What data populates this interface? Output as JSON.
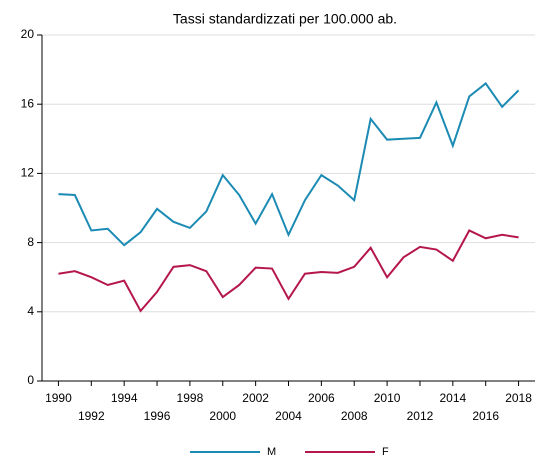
{
  "chart_data": {
    "type": "line",
    "title": "Tassi standardizzati per 100.000 ab.",
    "x": [
      1990,
      1991,
      1992,
      1993,
      1994,
      1995,
      1996,
      1997,
      1998,
      1999,
      2000,
      2001,
      2002,
      2003,
      2004,
      2005,
      2006,
      2007,
      2008,
      2009,
      2010,
      2011,
      2012,
      2013,
      2014,
      2015,
      2016,
      2017,
      2018
    ],
    "series": [
      {
        "name": "M",
        "color": "#1b8bb4",
        "values": [
          10.8,
          10.75,
          8.7,
          8.8,
          7.85,
          8.6,
          9.95,
          9.2,
          8.85,
          9.8,
          11.9,
          10.75,
          9.1,
          10.8,
          8.45,
          10.45,
          11.9,
          11.3,
          10.45,
          15.15,
          13.95,
          14,
          14.05,
          16.1,
          13.6,
          16.45,
          17.2,
          15.85,
          16.8
        ]
      },
      {
        "name": "F",
        "color": "#b5174b",
        "values": [
          6.2,
          6.35,
          6.0,
          5.55,
          5.8,
          4.05,
          5.15,
          6.6,
          6.7,
          6.35,
          4.85,
          5.55,
          6.55,
          6.5,
          4.75,
          6.2,
          6.3,
          6.25,
          6.6,
          7.7,
          6.0,
          7.15,
          7.75,
          7.6,
          6.95,
          8.7,
          8.25,
          8.45,
          8.3
        ]
      }
    ],
    "xlim": [
      1989,
      2019
    ],
    "xticks": [
      1990,
      1992,
      1994,
      1996,
      1998,
      2000,
      2002,
      2004,
      2006,
      2008,
      2010,
      2012,
      2014,
      2016,
      2018
    ],
    "ylim": [
      0,
      20
    ],
    "yticks": [
      0,
      4,
      8,
      12,
      16,
      20
    ],
    "grid": true,
    "legend": "bottom"
  }
}
